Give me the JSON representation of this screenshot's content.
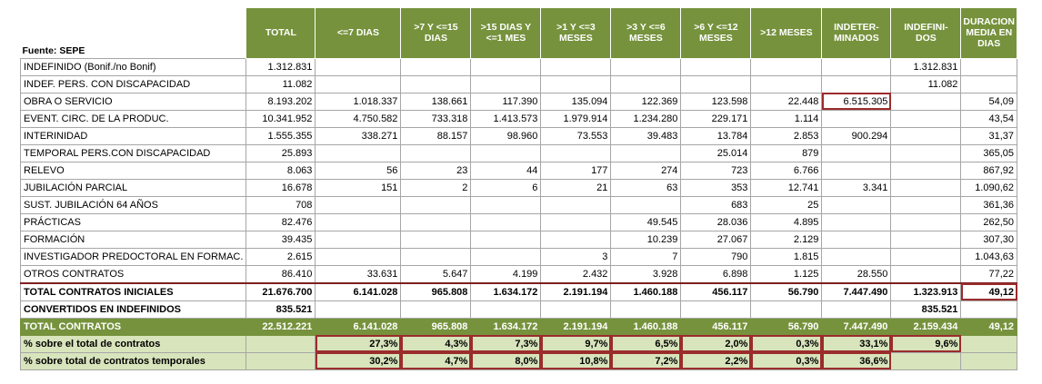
{
  "source_label": "Fuente: SEPE",
  "headers": [
    "TOTAL",
    "<=7 DIAS",
    ">7 Y <=15 DIAS",
    ">15 DIAS Y <=1 MES",
    ">1 Y <=3 MESES",
    ">3 Y <=6 MESES",
    ">6 Y <=12 MESES",
    ">12 MESES",
    "INDETER- MINADOS",
    "INDEFINI- DOS",
    "DURACION MEDIA EN DIAS"
  ],
  "rows": [
    {
      "label": "INDEFINIDO (Bonif./no Bonif)",
      "cells": [
        "1.312.831",
        "",
        "",
        "",
        "",
        "",
        "",
        "",
        "",
        "1.312.831",
        ""
      ]
    },
    {
      "label": "INDEF. PERS. CON DISCAPACIDAD",
      "cells": [
        "11.082",
        "",
        "",
        "",
        "",
        "",
        "",
        "",
        "",
        "11.082",
        ""
      ]
    },
    {
      "label": "OBRA O SERVICIO",
      "cells": [
        "8.193.202",
        "1.018.337",
        "138.661",
        "117.390",
        "135.094",
        "122.369",
        "123.598",
        "22.448",
        "6.515.305",
        "",
        "54,09"
      ]
    },
    {
      "label": "EVENT. CIRC. DE LA PRODUC.",
      "cells": [
        "10.341.952",
        "4.750.582",
        "733.318",
        "1.413.573",
        "1.979.914",
        "1.234.280",
        "229.171",
        "1.114",
        "",
        "",
        "43,54"
      ]
    },
    {
      "label": "INTERINIDAD",
      "cells": [
        "1.555.355",
        "338.271",
        "88.157",
        "98.960",
        "73.553",
        "39.483",
        "13.784",
        "2.853",
        "900.294",
        "",
        "31,37"
      ]
    },
    {
      "label": "TEMPORAL PERS.CON DISCAPACIDAD",
      "cells": [
        "25.893",
        "",
        "",
        "",
        "",
        "",
        "25.014",
        "879",
        "",
        "",
        "365,05"
      ]
    },
    {
      "label": "RELEVO",
      "cells": [
        "8.063",
        "56",
        "23",
        "44",
        "177",
        "274",
        "723",
        "6.766",
        "",
        "",
        "867,92"
      ]
    },
    {
      "label": "JUBILACIÓN PARCIAL",
      "cells": [
        "16.678",
        "151",
        "2",
        "6",
        "21",
        "63",
        "353",
        "12.741",
        "3.341",
        "",
        "1.090,62"
      ]
    },
    {
      "label": "SUST. JUBILACIÓN 64 AÑOS",
      "cells": [
        "708",
        "",
        "",
        "",
        "",
        "",
        "683",
        "25",
        "",
        "",
        "361,36"
      ]
    },
    {
      "label": "PRÁCTICAS",
      "cells": [
        "82.476",
        "",
        "",
        "",
        "",
        "49.545",
        "28.036",
        "4.895",
        "",
        "",
        "262,50"
      ]
    },
    {
      "label": "FORMACIÓN",
      "cells": [
        "39.435",
        "",
        "",
        "",
        "",
        "10.239",
        "27.067",
        "2.129",
        "",
        "",
        "307,30"
      ]
    },
    {
      "label": "INVESTIGADOR PREDOCTORAL EN FORMAC.",
      "cells": [
        "2.615",
        "",
        "",
        "",
        "3",
        "7",
        "790",
        "1.815",
        "",
        "",
        "1.043,63"
      ]
    },
    {
      "label": "OTROS CONTRATOS",
      "cells": [
        "86.410",
        "33.631",
        "5.647",
        "4.199",
        "2.432",
        "3.928",
        "6.898",
        "1.125",
        "28.550",
        "",
        "77,22"
      ]
    }
  ],
  "total_iniciales": {
    "label": "TOTAL CONTRATOS INICIALES",
    "cells": [
      "21.676.700",
      "6.141.028",
      "965.808",
      "1.634.172",
      "2.191.194",
      "1.460.188",
      "456.117",
      "56.790",
      "7.447.490",
      "1.323.913",
      "49,12"
    ]
  },
  "convertidos": {
    "label": "CONVERTIDOS EN INDEFINIDOS",
    "cells": [
      "835.521",
      "",
      "",
      "",
      "",
      "",
      "",
      "",
      "",
      "835.521",
      ""
    ]
  },
  "total_contratos": {
    "label": "TOTAL CONTRATOS",
    "cells": [
      "22.512.221",
      "6.141.028",
      "965.808",
      "1.634.172",
      "2.191.194",
      "1.460.188",
      "456.117",
      "56.790",
      "7.447.490",
      "2.159.434",
      "49,12"
    ]
  },
  "pct_total": {
    "label": "% sobre el total de contratos",
    "cells": [
      "",
      "27,3%",
      "4,3%",
      "7,3%",
      "9,7%",
      "6,5%",
      "2,0%",
      "0,3%",
      "33,1%",
      "9,6%",
      ""
    ]
  },
  "pct_temporales": {
    "label": "% sobre total de contratos temporales",
    "cells": [
      "",
      "30,2%",
      "4,7%",
      "8,0%",
      "10,8%",
      "7,2%",
      "2,2%",
      "0,3%",
      "36,6%",
      "",
      ""
    ]
  }
}
